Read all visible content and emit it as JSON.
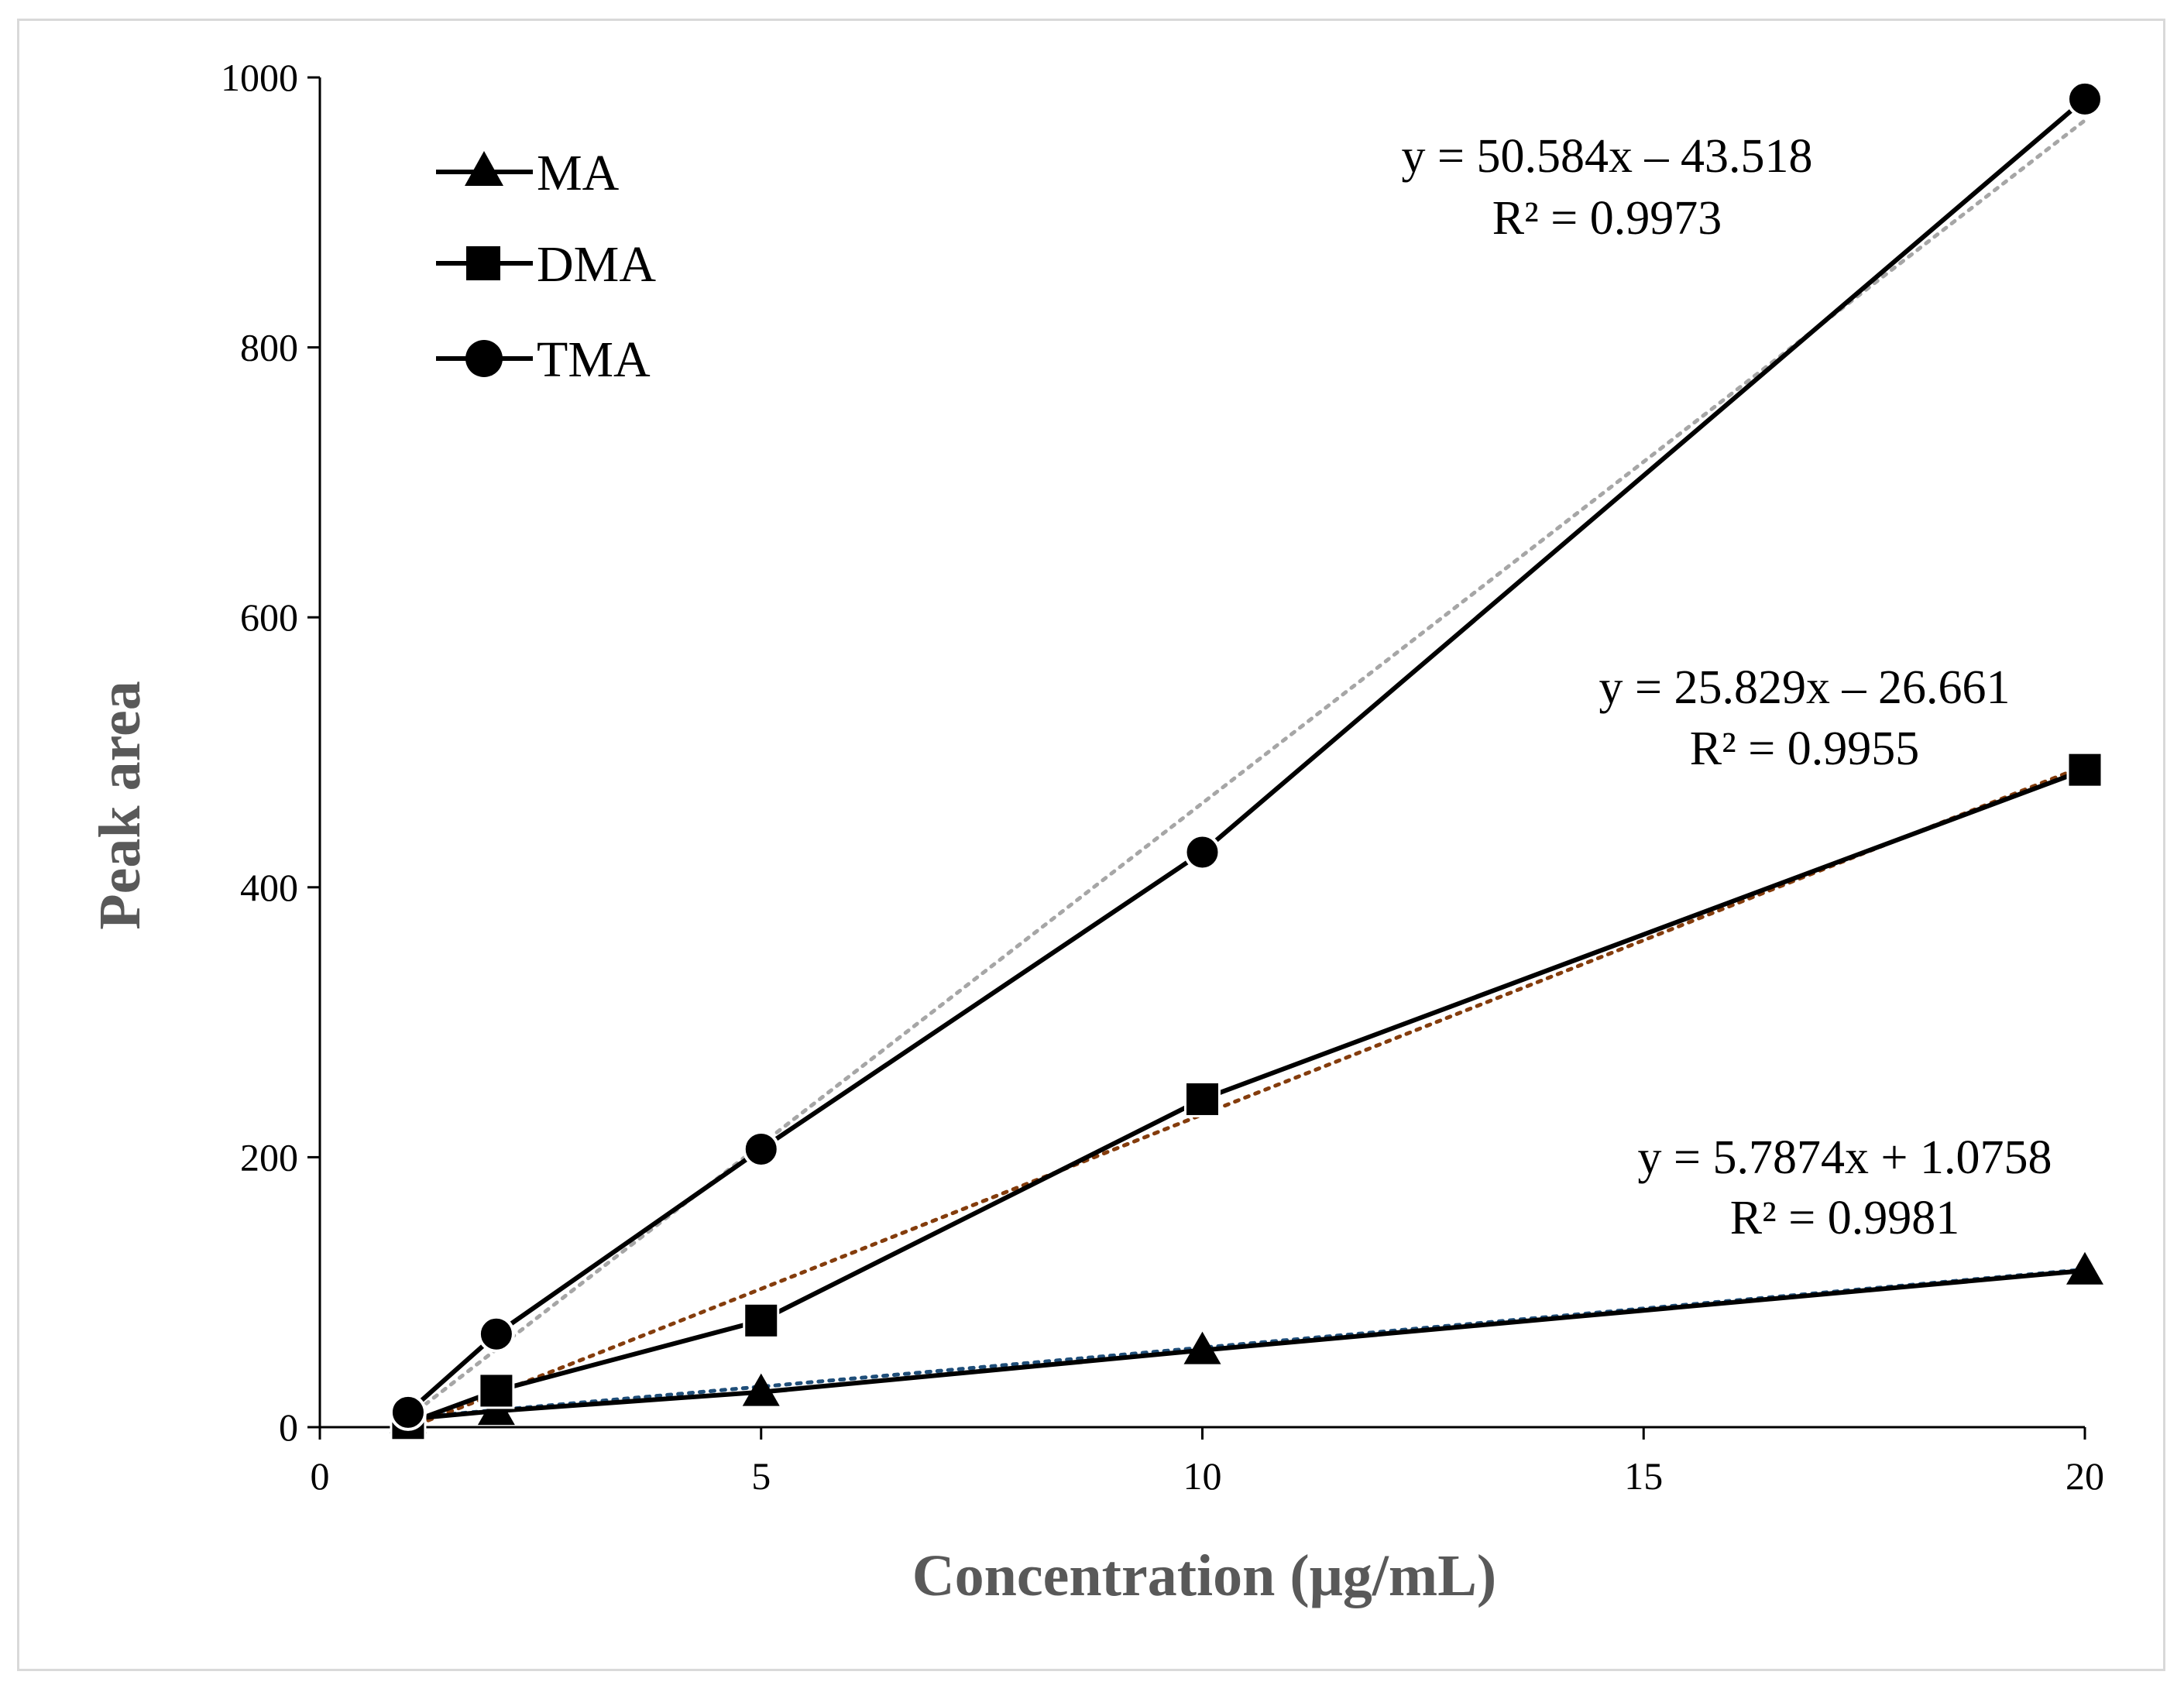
{
  "chart_data": {
    "type": "line",
    "title": "",
    "xlabel": "Concentration (μg/mL)",
    "ylabel": "Peak area",
    "xlim": [
      0,
      20
    ],
    "ylim": [
      0,
      1000
    ],
    "xticks": [
      0,
      5,
      10,
      15,
      20
    ],
    "yticks": [
      0,
      200,
      400,
      600,
      800,
      1000
    ],
    "grid": false,
    "legend_position": "top-left",
    "series": [
      {
        "name": "MA",
        "marker": "triangle",
        "x": [
          1,
          2,
          5,
          10,
          20
        ],
        "y": [
          6,
          12,
          26,
          57,
          116
        ],
        "trendline": {
          "slope": 5.7874,
          "intercept": 1.0758,
          "color": "#1f4e79"
        },
        "equation": "y = 5.7874x + 1.0758",
        "r2": "R² = 0.9981"
      },
      {
        "name": "DMA",
        "marker": "square",
        "x": [
          1,
          2,
          5,
          10,
          20
        ],
        "y": [
          3,
          27,
          79,
          243,
          487
        ],
        "trendline": {
          "slope": 25.829,
          "intercept": -26.661,
          "color": "#843c0c"
        },
        "equation": "y = 25.829x – 26.661",
        "r2": "R² = 0.9955"
      },
      {
        "name": "TMA",
        "marker": "circle",
        "x": [
          1,
          2,
          5,
          10,
          20
        ],
        "y": [
          11,
          69,
          206,
          426,
          984
        ],
        "trendline": {
          "slope": 50.584,
          "intercept": -43.518,
          "color": "#a6a6a6"
        },
        "equation": "y = 50.584x – 43.518",
        "r2": "R² = 0.9973"
      }
    ]
  }
}
